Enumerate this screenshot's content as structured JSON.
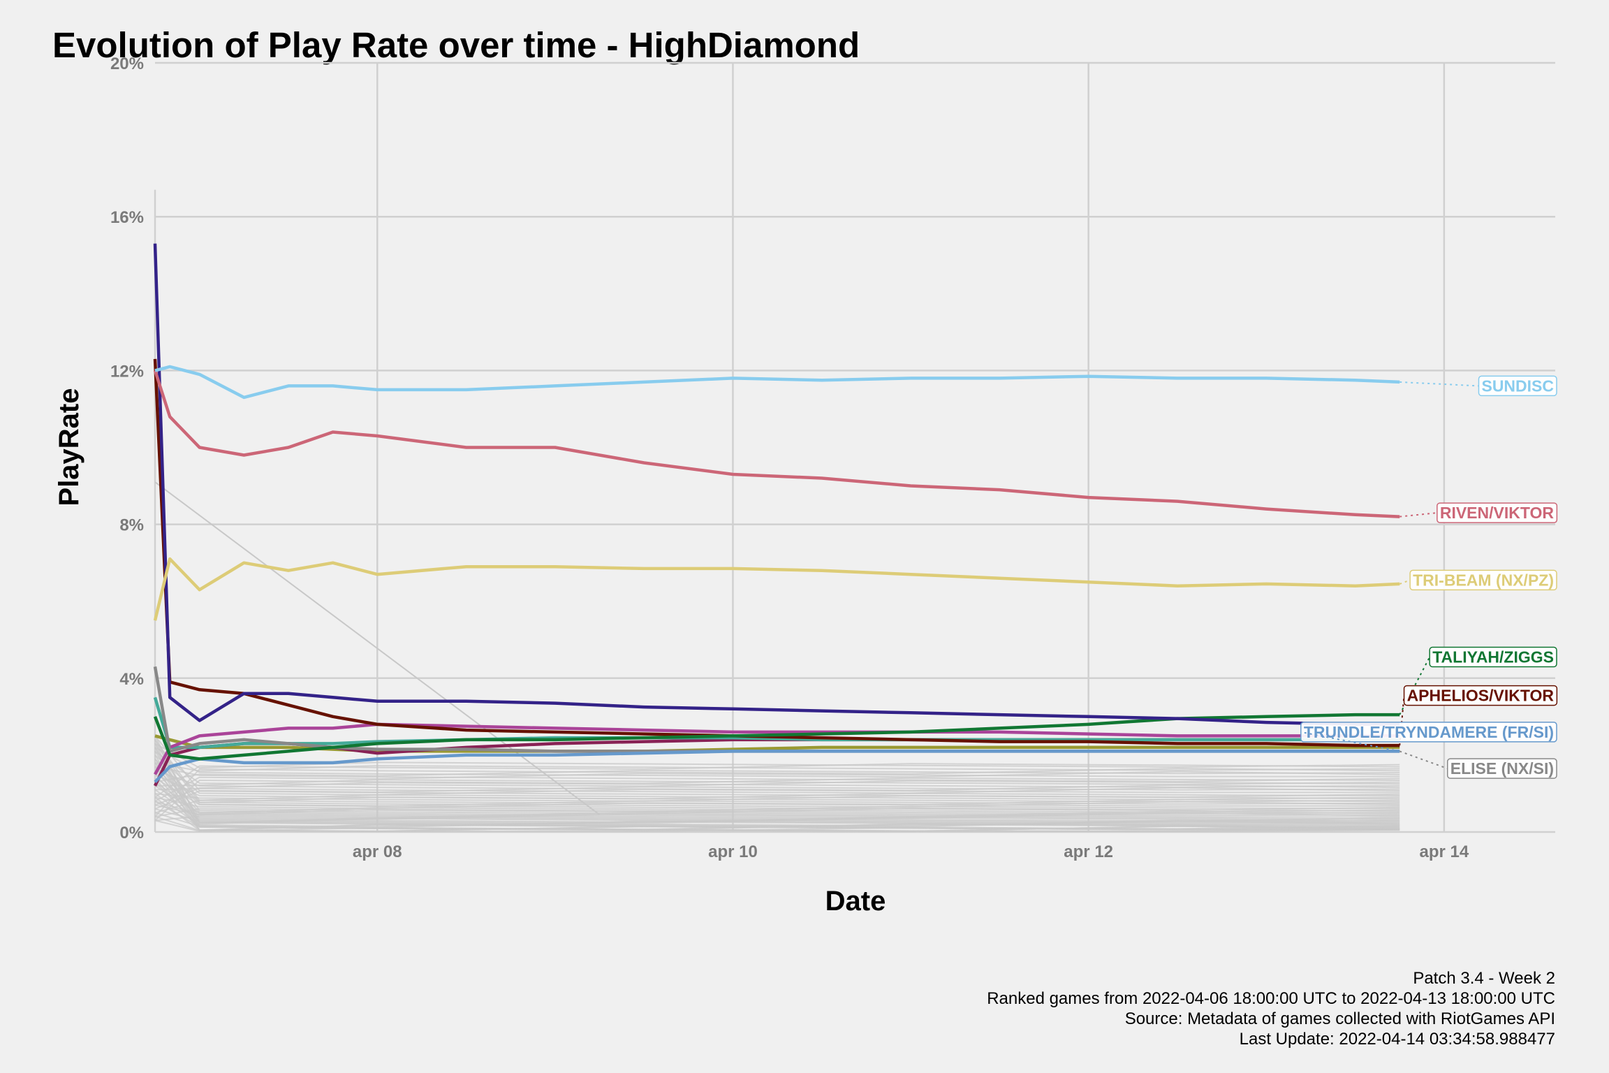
{
  "chart_data": {
    "type": "line",
    "title": "Evolution of Play Rate over time - HighDiamond",
    "xlabel": "Date",
    "ylabel": "PlayRate",
    "x_ticks": [
      {
        "date": "2022-04-08",
        "label": "apr 08"
      },
      {
        "date": "2022-04-10",
        "label": "apr 10"
      },
      {
        "date": "2022-04-12",
        "label": "apr 12"
      },
      {
        "date": "2022-04-14",
        "label": "apr 14"
      }
    ],
    "xlim": [
      "2022-04-06 18:00",
      "2022-04-14 15:00"
    ],
    "ylim": [
      0,
      20
    ],
    "y_ticks": [
      {
        "value": 0,
        "label": "0%"
      },
      {
        "value": 4,
        "label": "4%"
      },
      {
        "value": 8,
        "label": "8%"
      },
      {
        "value": 12,
        "label": "12%"
      },
      {
        "value": 16,
        "label": "16%"
      },
      {
        "value": 20,
        "label": "20%"
      }
    ],
    "grid": true,
    "legend": "none",
    "series": [
      {
        "name": "SUNDISC",
        "color": "#88ccee",
        "points": [
          [
            "2022-04-06 18:00",
            12.0
          ],
          [
            "2022-04-06 20:00",
            12.1
          ],
          [
            "2022-04-07 00:00",
            11.9
          ],
          [
            "2022-04-07 06:00",
            11.3
          ],
          [
            "2022-04-07 12:00",
            11.6
          ],
          [
            "2022-04-07 18:00",
            11.6
          ],
          [
            "2022-04-08 00:00",
            11.5
          ],
          [
            "2022-04-08 12:00",
            11.5
          ],
          [
            "2022-04-09 00:00",
            11.6
          ],
          [
            "2022-04-09 12:00",
            11.7
          ],
          [
            "2022-04-10 00:00",
            11.8
          ],
          [
            "2022-04-10 12:00",
            11.75
          ],
          [
            "2022-04-11 00:00",
            11.8
          ],
          [
            "2022-04-11 12:00",
            11.8
          ],
          [
            "2022-04-12 00:00",
            11.85
          ],
          [
            "2022-04-12 12:00",
            11.8
          ],
          [
            "2022-04-13 00:00",
            11.8
          ],
          [
            "2022-04-13 12:00",
            11.75
          ],
          [
            "2022-04-13 18:00",
            11.7
          ]
        ]
      },
      {
        "name": "RIVEN/VIKTOR",
        "color": "#cc6677",
        "points": [
          [
            "2022-04-06 18:00",
            12.0
          ],
          [
            "2022-04-06 20:00",
            10.8
          ],
          [
            "2022-04-07 00:00",
            10.0
          ],
          [
            "2022-04-07 06:00",
            9.8
          ],
          [
            "2022-04-07 12:00",
            10.0
          ],
          [
            "2022-04-07 18:00",
            10.4
          ],
          [
            "2022-04-08 00:00",
            10.3
          ],
          [
            "2022-04-08 12:00",
            10.0
          ],
          [
            "2022-04-09 00:00",
            10.0
          ],
          [
            "2022-04-09 12:00",
            9.6
          ],
          [
            "2022-04-10 00:00",
            9.3
          ],
          [
            "2022-04-10 12:00",
            9.2
          ],
          [
            "2022-04-11 00:00",
            9.0
          ],
          [
            "2022-04-11 12:00",
            8.9
          ],
          [
            "2022-04-12 00:00",
            8.7
          ],
          [
            "2022-04-12 12:00",
            8.6
          ],
          [
            "2022-04-13 00:00",
            8.4
          ],
          [
            "2022-04-13 12:00",
            8.25
          ],
          [
            "2022-04-13 18:00",
            8.2
          ]
        ]
      },
      {
        "name": "TRI-BEAM (NX/PZ)",
        "color": "#ddcc77",
        "points": [
          [
            "2022-04-06 18:00",
            5.5
          ],
          [
            "2022-04-06 20:00",
            7.1
          ],
          [
            "2022-04-07 00:00",
            6.3
          ],
          [
            "2022-04-07 06:00",
            7.0
          ],
          [
            "2022-04-07 12:00",
            6.8
          ],
          [
            "2022-04-07 18:00",
            7.0
          ],
          [
            "2022-04-08 00:00",
            6.7
          ],
          [
            "2022-04-08 12:00",
            6.9
          ],
          [
            "2022-04-09 00:00",
            6.9
          ],
          [
            "2022-04-09 12:00",
            6.85
          ],
          [
            "2022-04-10 00:00",
            6.85
          ],
          [
            "2022-04-10 12:00",
            6.8
          ],
          [
            "2022-04-11 00:00",
            6.7
          ],
          [
            "2022-04-11 12:00",
            6.6
          ],
          [
            "2022-04-12 00:00",
            6.5
          ],
          [
            "2022-04-12 12:00",
            6.4
          ],
          [
            "2022-04-13 00:00",
            6.45
          ],
          [
            "2022-04-13 12:00",
            6.4
          ],
          [
            "2022-04-13 18:00",
            6.45
          ]
        ]
      },
      {
        "name": "",
        "color": "#332288",
        "points": [
          [
            "2022-04-06 18:00",
            15.3
          ],
          [
            "2022-04-06 20:00",
            3.5
          ],
          [
            "2022-04-07 00:00",
            2.9
          ],
          [
            "2022-04-07 06:00",
            3.6
          ],
          [
            "2022-04-07 12:00",
            3.6
          ],
          [
            "2022-04-07 18:00",
            3.5
          ],
          [
            "2022-04-08 00:00",
            3.4
          ],
          [
            "2022-04-08 12:00",
            3.4
          ],
          [
            "2022-04-09 00:00",
            3.35
          ],
          [
            "2022-04-09 12:00",
            3.25
          ],
          [
            "2022-04-10 00:00",
            3.2
          ],
          [
            "2022-04-10 12:00",
            3.15
          ],
          [
            "2022-04-11 00:00",
            3.1
          ],
          [
            "2022-04-11 12:00",
            3.05
          ],
          [
            "2022-04-12 00:00",
            3.0
          ],
          [
            "2022-04-12 12:00",
            2.95
          ],
          [
            "2022-04-13 00:00",
            2.85
          ],
          [
            "2022-04-13 12:00",
            2.8
          ],
          [
            "2022-04-13 18:00",
            2.8
          ]
        ]
      },
      {
        "name": "TALIYAH/ZIGGS",
        "color": "#117733",
        "points": [
          [
            "2022-04-06 18:00",
            3.0
          ],
          [
            "2022-04-06 20:00",
            2.0
          ],
          [
            "2022-04-07 00:00",
            1.9
          ],
          [
            "2022-04-07 06:00",
            2.0
          ],
          [
            "2022-04-07 12:00",
            2.1
          ],
          [
            "2022-04-07 18:00",
            2.2
          ],
          [
            "2022-04-08 00:00",
            2.3
          ],
          [
            "2022-04-08 12:00",
            2.4
          ],
          [
            "2022-04-09 00:00",
            2.4
          ],
          [
            "2022-04-09 12:00",
            2.45
          ],
          [
            "2022-04-10 00:00",
            2.5
          ],
          [
            "2022-04-10 12:00",
            2.55
          ],
          [
            "2022-04-11 00:00",
            2.6
          ],
          [
            "2022-04-11 12:00",
            2.7
          ],
          [
            "2022-04-12 00:00",
            2.8
          ],
          [
            "2022-04-12 12:00",
            2.95
          ],
          [
            "2022-04-13 00:00",
            3.0
          ],
          [
            "2022-04-13 12:00",
            3.05
          ],
          [
            "2022-04-13 18:00",
            3.05
          ]
        ]
      },
      {
        "name": "APHELIOS/VIKTOR",
        "color": "#661100",
        "points": [
          [
            "2022-04-06 18:00",
            12.3
          ],
          [
            "2022-04-06 20:00",
            3.9
          ],
          [
            "2022-04-07 00:00",
            3.7
          ],
          [
            "2022-04-07 06:00",
            3.6
          ],
          [
            "2022-04-07 12:00",
            3.3
          ],
          [
            "2022-04-07 18:00",
            3.0
          ],
          [
            "2022-04-08 00:00",
            2.8
          ],
          [
            "2022-04-08 12:00",
            2.65
          ],
          [
            "2022-04-09 00:00",
            2.6
          ],
          [
            "2022-04-09 12:00",
            2.55
          ],
          [
            "2022-04-10 00:00",
            2.5
          ],
          [
            "2022-04-10 12:00",
            2.45
          ],
          [
            "2022-04-11 00:00",
            2.4
          ],
          [
            "2022-04-11 12:00",
            2.35
          ],
          [
            "2022-04-12 00:00",
            2.35
          ],
          [
            "2022-04-12 12:00",
            2.3
          ],
          [
            "2022-04-13 00:00",
            2.3
          ],
          [
            "2022-04-13 12:00",
            2.25
          ],
          [
            "2022-04-13 18:00",
            2.25
          ]
        ]
      },
      {
        "name": "TRUNDLE/TRYNDAMERE (FR/SI)",
        "color": "#6699cc",
        "points": [
          [
            "2022-04-06 18:00",
            1.3
          ],
          [
            "2022-04-06 20:00",
            1.7
          ],
          [
            "2022-04-07 00:00",
            1.9
          ],
          [
            "2022-04-07 06:00",
            1.8
          ],
          [
            "2022-04-07 12:00",
            1.8
          ],
          [
            "2022-04-07 18:00",
            1.8
          ],
          [
            "2022-04-08 00:00",
            1.9
          ],
          [
            "2022-04-08 12:00",
            2.0
          ],
          [
            "2022-04-09 00:00",
            2.0
          ],
          [
            "2022-04-09 12:00",
            2.05
          ],
          [
            "2022-04-10 00:00",
            2.1
          ],
          [
            "2022-04-10 12:00",
            2.1
          ],
          [
            "2022-04-11 00:00",
            2.1
          ],
          [
            "2022-04-11 12:00",
            2.1
          ],
          [
            "2022-04-12 00:00",
            2.1
          ],
          [
            "2022-04-12 12:00",
            2.1
          ],
          [
            "2022-04-13 00:00",
            2.1
          ],
          [
            "2022-04-13 12:00",
            2.1
          ],
          [
            "2022-04-13 18:00",
            2.1
          ]
        ]
      },
      {
        "name": "ELISE (NX/SI)",
        "color": "#888888",
        "points": [
          [
            "2022-04-06 18:00",
            4.3
          ],
          [
            "2022-04-06 20:00",
            2.1
          ],
          [
            "2022-04-07 00:00",
            2.3
          ],
          [
            "2022-04-07 06:00",
            2.4
          ],
          [
            "2022-04-07 12:00",
            2.3
          ],
          [
            "2022-04-07 18:00",
            2.2
          ],
          [
            "2022-04-08 00:00",
            2.15
          ],
          [
            "2022-04-08 12:00",
            2.15
          ],
          [
            "2022-04-09 00:00",
            2.1
          ],
          [
            "2022-04-09 12:00",
            2.1
          ],
          [
            "2022-04-10 00:00",
            2.1
          ],
          [
            "2022-04-10 12:00",
            2.1
          ],
          [
            "2022-04-11 00:00",
            2.1
          ],
          [
            "2022-04-11 12:00",
            2.1
          ],
          [
            "2022-04-12 00:00",
            2.1
          ],
          [
            "2022-04-12 12:00",
            2.1
          ],
          [
            "2022-04-13 00:00",
            2.1
          ],
          [
            "2022-04-13 12:00",
            2.1
          ],
          [
            "2022-04-13 18:00",
            2.1
          ]
        ]
      },
      {
        "name": "",
        "color": "#aa4499",
        "points": [
          [
            "2022-04-06 18:00",
            1.5
          ],
          [
            "2022-04-06 20:00",
            2.2
          ],
          [
            "2022-04-07 00:00",
            2.5
          ],
          [
            "2022-04-07 06:00",
            2.6
          ],
          [
            "2022-04-07 12:00",
            2.7
          ],
          [
            "2022-04-07 18:00",
            2.7
          ],
          [
            "2022-04-08 00:00",
            2.8
          ],
          [
            "2022-04-08 12:00",
            2.75
          ],
          [
            "2022-04-09 00:00",
            2.7
          ],
          [
            "2022-04-09 12:00",
            2.65
          ],
          [
            "2022-04-10 00:00",
            2.6
          ],
          [
            "2022-04-10 12:00",
            2.6
          ],
          [
            "2022-04-11 00:00",
            2.6
          ],
          [
            "2022-04-11 12:00",
            2.6
          ],
          [
            "2022-04-12 00:00",
            2.55
          ],
          [
            "2022-04-12 12:00",
            2.5
          ],
          [
            "2022-04-13 00:00",
            2.5
          ],
          [
            "2022-04-13 12:00",
            2.5
          ],
          [
            "2022-04-13 18:00",
            2.5
          ]
        ]
      },
      {
        "name": "",
        "color": "#44aa99",
        "points": [
          [
            "2022-04-06 18:00",
            3.5
          ],
          [
            "2022-04-06 20:00",
            2.2
          ],
          [
            "2022-04-07 00:00",
            2.2
          ],
          [
            "2022-04-07 06:00",
            2.3
          ],
          [
            "2022-04-07 12:00",
            2.3
          ],
          [
            "2022-04-07 18:00",
            2.3
          ],
          [
            "2022-04-08 00:00",
            2.35
          ],
          [
            "2022-04-08 12:00",
            2.4
          ],
          [
            "2022-04-09 00:00",
            2.45
          ],
          [
            "2022-04-09 12:00",
            2.45
          ],
          [
            "2022-04-10 00:00",
            2.45
          ],
          [
            "2022-04-10 12:00",
            2.4
          ],
          [
            "2022-04-11 00:00",
            2.4
          ],
          [
            "2022-04-11 12:00",
            2.4
          ],
          [
            "2022-04-12 00:00",
            2.4
          ],
          [
            "2022-04-12 12:00",
            2.4
          ],
          [
            "2022-04-13 00:00",
            2.4
          ],
          [
            "2022-04-13 12:00",
            2.4
          ],
          [
            "2022-04-13 18:00",
            2.4
          ]
        ]
      },
      {
        "name": "",
        "color": "#882255",
        "points": [
          [
            "2022-04-06 18:00",
            1.2
          ],
          [
            "2022-04-06 20:00",
            2.0
          ],
          [
            "2022-04-07 00:00",
            2.2
          ],
          [
            "2022-04-07 06:00",
            2.3
          ],
          [
            "2022-04-07 12:00",
            2.3
          ],
          [
            "2022-04-07 18:00",
            2.2
          ],
          [
            "2022-04-08 00:00",
            2.05
          ],
          [
            "2022-04-08 12:00",
            2.2
          ],
          [
            "2022-04-09 00:00",
            2.3
          ],
          [
            "2022-04-09 12:00",
            2.35
          ],
          [
            "2022-04-10 00:00",
            2.4
          ],
          [
            "2022-04-10 12:00",
            2.4
          ],
          [
            "2022-04-11 00:00",
            2.4
          ],
          [
            "2022-04-11 12:00",
            2.4
          ],
          [
            "2022-04-12 00:00",
            2.4
          ],
          [
            "2022-04-12 12:00",
            2.4
          ],
          [
            "2022-04-13 00:00",
            2.4
          ],
          [
            "2022-04-13 12:00",
            2.4
          ],
          [
            "2022-04-13 18:00",
            2.4
          ]
        ]
      },
      {
        "name": "",
        "color": "#999933",
        "points": [
          [
            "2022-04-06 18:00",
            2.5
          ],
          [
            "2022-04-06 20:00",
            2.4
          ],
          [
            "2022-04-07 00:00",
            2.2
          ],
          [
            "2022-04-07 06:00",
            2.2
          ],
          [
            "2022-04-07 12:00",
            2.2
          ],
          [
            "2022-04-07 18:00",
            2.15
          ],
          [
            "2022-04-08 00:00",
            2.1
          ],
          [
            "2022-04-08 12:00",
            2.1
          ],
          [
            "2022-04-09 00:00",
            2.1
          ],
          [
            "2022-04-09 12:00",
            2.1
          ],
          [
            "2022-04-10 00:00",
            2.15
          ],
          [
            "2022-04-10 12:00",
            2.2
          ],
          [
            "2022-04-11 00:00",
            2.2
          ],
          [
            "2022-04-11 12:00",
            2.2
          ],
          [
            "2022-04-12 00:00",
            2.2
          ],
          [
            "2022-04-12 12:00",
            2.2
          ],
          [
            "2022-04-13 00:00",
            2.2
          ],
          [
            "2022-04-13 12:00",
            2.2
          ],
          [
            "2022-04-13 18:00",
            2.2
          ]
        ]
      }
    ],
    "labels": [
      {
        "text": "SUNDISC",
        "series": 0,
        "value": 11.6
      },
      {
        "text": "RIVEN/VIKTOR",
        "series": 1,
        "value": 8.3
      },
      {
        "text": "TRI-BEAM (NX/PZ)",
        "series": 2,
        "value": 6.55
      },
      {
        "text": "TALIYAH/ZIGGS",
        "series": 4,
        "value": 4.55
      },
      {
        "text": "APHELIOS/VIKTOR",
        "series": 5,
        "value": 3.55
      },
      {
        "text": "TRUNDLE/TRYNDAMERE (FR/SI)",
        "series": 6,
        "value": 2.6
      },
      {
        "text": "ELISE (NX/SI)",
        "series": 7,
        "value": 1.65
      }
    ],
    "background_series_color": "#c8c8c8",
    "caption": [
      "Patch 3.4 - Week 2",
      "Ranked games from 2022-04-06 18:00:00 UTC to 2022-04-13 18:00:00 UTC",
      "Source: Metadata of games collected with RiotGames API",
      "Last Update: 2022-04-14 03:34:58.988477"
    ]
  }
}
